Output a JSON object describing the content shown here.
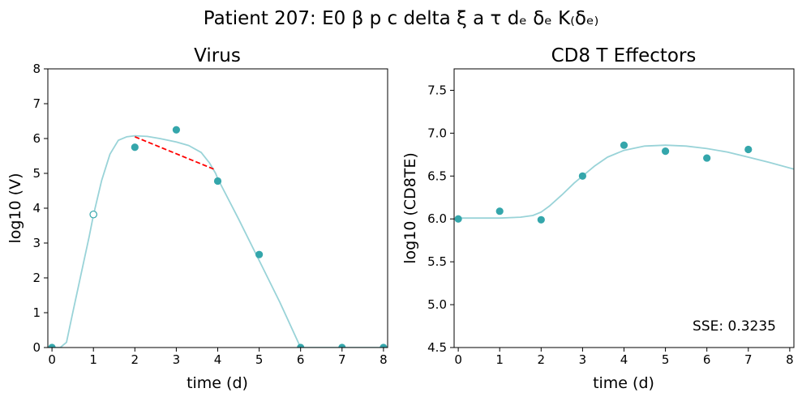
{
  "figure": {
    "title": "Patient 207: E0 β p c delta ξ a τ dₑ δₑ K₍δₑ₎"
  },
  "colors": {
    "fit_line": "#99d3d8",
    "points": "#34a6ab",
    "segment": "#ff0000",
    "axes": "#000000"
  },
  "chart_data": [
    {
      "type": "line",
      "title": "Virus",
      "xlabel": "time (d)",
      "ylabel": "log10 (V)",
      "xlim": [
        -0.1,
        8.1
      ],
      "ylim": [
        0,
        8
      ],
      "xticks": [
        0,
        1,
        2,
        3,
        4,
        5,
        6,
        7,
        8
      ],
      "yticks": [
        0,
        1,
        2,
        3,
        4,
        5,
        6,
        7,
        8
      ],
      "xtick_labels": [
        "0",
        "1",
        "2",
        "3",
        "4",
        "5",
        "6",
        "7",
        "8"
      ],
      "ytick_labels": [
        "0",
        "1",
        "2",
        "3",
        "4",
        "5",
        "6",
        "7",
        "8"
      ],
      "fit_curve": {
        "x": [
          0,
          0.2,
          0.35,
          0.5,
          0.7,
          0.9,
          1.0,
          1.2,
          1.4,
          1.6,
          1.8,
          2.0,
          2.3,
          2.6,
          3.0,
          3.3,
          3.6,
          3.8,
          3.95,
          4.0,
          4.5,
          5.0,
          5.5,
          6.0,
          6.5,
          7.0,
          7.5,
          8.1
        ],
        "y": [
          0,
          0,
          0.15,
          1.0,
          2.1,
          3.2,
          3.8,
          4.8,
          5.55,
          5.95,
          6.05,
          6.08,
          6.06,
          6.0,
          5.9,
          5.8,
          5.6,
          5.3,
          5.0,
          4.85,
          3.7,
          2.5,
          1.3,
          0,
          0,
          0,
          0,
          0
        ]
      },
      "observed_points": {
        "x": [
          0,
          2,
          3,
          4,
          5,
          6,
          7,
          8
        ],
        "y": [
          0,
          5.75,
          6.25,
          4.78,
          2.67,
          0,
          0,
          0
        ]
      },
      "excluded_points": {
        "x": [
          1
        ],
        "y": [
          3.82
        ]
      },
      "segment": {
        "x": [
          2,
          3.95
        ],
        "y": [
          6.05,
          5.1
        ],
        "style": "dashed"
      }
    },
    {
      "type": "line",
      "title": "CD8 T Effectors",
      "xlabel": "time (d)",
      "ylabel": "log10 (CD8TE)",
      "xlim": [
        -0.1,
        8.1
      ],
      "ylim": [
        4.5,
        7.75
      ],
      "xticks": [
        0,
        1,
        2,
        3,
        4,
        5,
        6,
        7,
        8
      ],
      "yticks": [
        4.5,
        5.0,
        5.5,
        6.0,
        6.5,
        7.0,
        7.5
      ],
      "xtick_labels": [
        "0",
        "1",
        "2",
        "3",
        "4",
        "5",
        "6",
        "7",
        "8"
      ],
      "ytick_labels": [
        "4.5",
        "5.0",
        "5.5",
        "6.0",
        "6.5",
        "7.0",
        "7.5"
      ],
      "fit_curve": {
        "x": [
          0,
          0.5,
          1.0,
          1.5,
          1.8,
          2.0,
          2.2,
          2.5,
          2.8,
          3.0,
          3.3,
          3.6,
          4.0,
          4.5,
          5.0,
          5.5,
          6.0,
          6.5,
          7.0,
          7.5,
          8.1
        ],
        "y": [
          6.01,
          6.01,
          6.01,
          6.02,
          6.04,
          6.08,
          6.15,
          6.28,
          6.42,
          6.5,
          6.62,
          6.72,
          6.8,
          6.85,
          6.86,
          6.85,
          6.82,
          6.78,
          6.72,
          6.66,
          6.58
        ]
      },
      "observed_points": {
        "x": [
          0,
          1,
          2,
          3,
          4,
          5,
          6,
          7
        ],
        "y": [
          6.0,
          6.09,
          5.99,
          6.5,
          6.86,
          6.79,
          6.71,
          6.81
        ]
      },
      "annotation": "SSE: 0.3235"
    }
  ]
}
